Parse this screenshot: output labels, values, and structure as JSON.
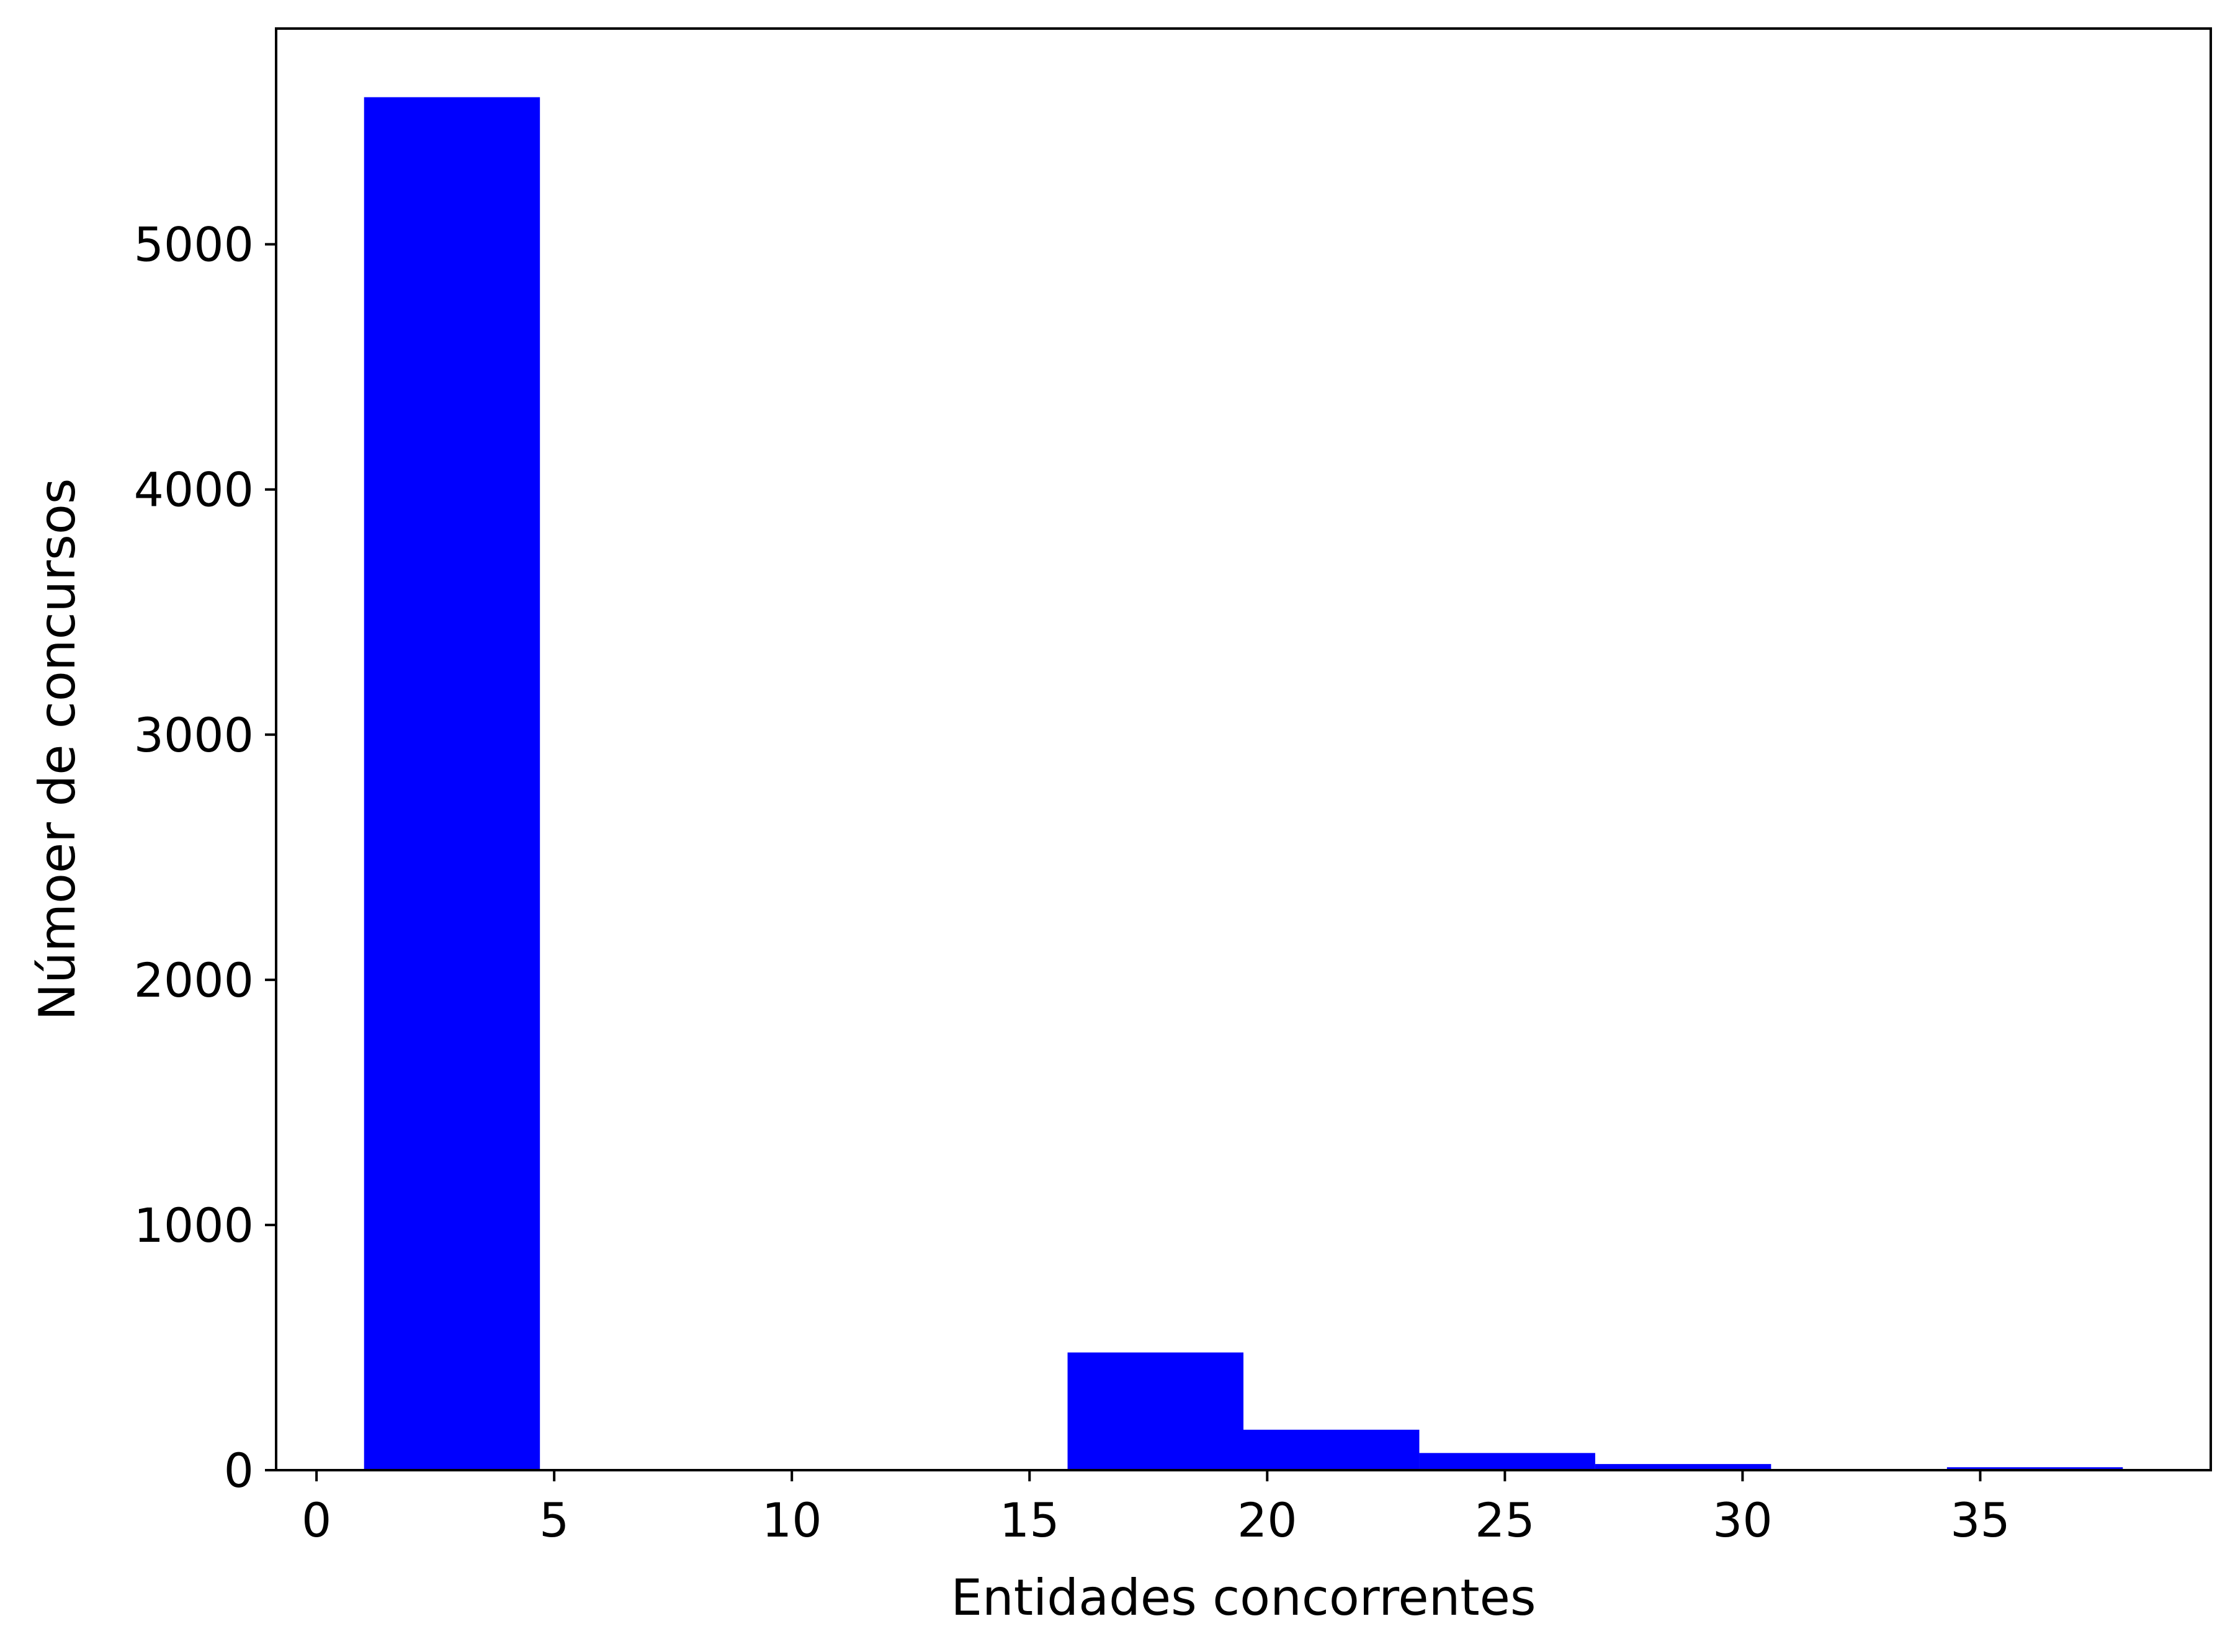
{
  "chart_data": {
    "type": "bar",
    "subtype": "histogram",
    "title": "",
    "xlabel": "Entidades concorrentes",
    "ylabel": "Númoer de concursos",
    "xlim": [
      -0.85,
      39.85
    ],
    "ylim": [
      0,
      5880
    ],
    "xticks": [
      0,
      5,
      10,
      15,
      20,
      25,
      30,
      35
    ],
    "yticks": [
      0,
      1000,
      2000,
      3000,
      4000,
      5000
    ],
    "bar_color": "#0000ff",
    "grid": false,
    "legend": "none",
    "bins": [
      {
        "x0": 1.0,
        "x1": 4.7,
        "value": 5600
      },
      {
        "x0": 4.7,
        "x1": 8.4,
        "value": 0
      },
      {
        "x0": 8.4,
        "x1": 12.1,
        "value": 0
      },
      {
        "x0": 12.1,
        "x1": 15.8,
        "value": 0
      },
      {
        "x0": 15.8,
        "x1": 19.5,
        "value": 480
      },
      {
        "x0": 19.5,
        "x1": 23.2,
        "value": 165
      },
      {
        "x0": 23.2,
        "x1": 26.9,
        "value": 70
      },
      {
        "x0": 26.9,
        "x1": 30.6,
        "value": 25
      },
      {
        "x0": 30.6,
        "x1": 34.3,
        "value": 5
      },
      {
        "x0": 34.3,
        "x1": 38.0,
        "value": 12
      }
    ]
  }
}
